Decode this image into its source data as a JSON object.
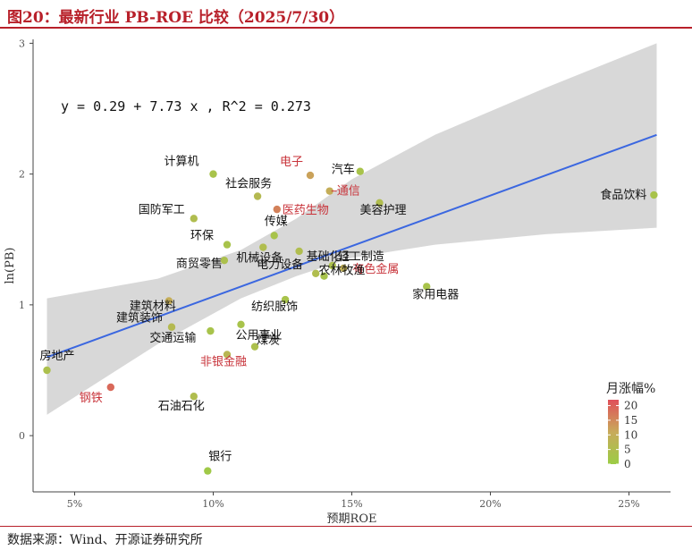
{
  "header": {
    "title": "图20：最新行业 PB-ROE 比较（2025/7/30）"
  },
  "footer": {
    "source": "数据来源：Wind、开源证券研究所"
  },
  "chart_data": {
    "type": "scatter",
    "title": "",
    "xlabel": "预期ROE",
    "ylabel": "ln(PB)",
    "xlim": [
      0.035,
      0.265
    ],
    "ylim": [
      -0.43,
      3.03
    ],
    "x_ticks": [
      {
        "value": 0.05,
        "label": "5%"
      },
      {
        "value": 0.1,
        "label": "10%"
      },
      {
        "value": 0.15,
        "label": "15%"
      },
      {
        "value": 0.2,
        "label": "20%"
      },
      {
        "value": 0.25,
        "label": "25%"
      }
    ],
    "y_ticks": [
      {
        "value": 0,
        "label": "0"
      },
      {
        "value": 1,
        "label": "1"
      },
      {
        "value": 2,
        "label": "2"
      },
      {
        "value": 3,
        "label": "3"
      }
    ],
    "grid": false,
    "regression": {
      "equation": "y = 0.29 + 7.73 x , R^2 = 0.273",
      "x_range": [
        0.04,
        0.26
      ],
      "intercept": 0.29,
      "slope": 7.73,
      "line_color": "#3b67e0",
      "band_color": "#d6d6d6",
      "band": [
        {
          "x": 0.04,
          "lo": 0.16,
          "hi": 1.05
        },
        {
          "x": 0.08,
          "lo": 0.7,
          "hi": 1.2
        },
        {
          "x": 0.11,
          "lo": 1.05,
          "hi": 1.42
        },
        {
          "x": 0.13,
          "lo": 1.22,
          "hi": 1.66
        },
        {
          "x": 0.15,
          "lo": 1.36,
          "hi": 1.96
        },
        {
          "x": 0.18,
          "lo": 1.46,
          "hi": 2.3
        },
        {
          "x": 0.22,
          "lo": 1.54,
          "hi": 2.66
        },
        {
          "x": 0.26,
          "lo": 1.59,
          "hi": 3.0
        }
      ]
    },
    "legend": {
      "title": "月涨幅%",
      "position": "right",
      "ticks": [
        "20",
        "15",
        "10",
        "5",
        "0"
      ],
      "tick_values": [
        20,
        15,
        10,
        5,
        0
      ],
      "range": [
        0,
        22
      ],
      "color_low": "#9ccc46",
      "color_high": "#e0505a"
    },
    "points": [
      {
        "label": "计算机",
        "x": 0.1,
        "y": 2.0,
        "change": 3,
        "highlight": false
      },
      {
        "label": "电子",
        "x": 0.135,
        "y": 1.99,
        "change": 12,
        "highlight": true
      },
      {
        "label": "汽车",
        "x": 0.153,
        "y": 2.02,
        "change": 3,
        "highlight": false
      },
      {
        "label": "通信",
        "x": 0.142,
        "y": 1.87,
        "change": 10,
        "highlight": true
      },
      {
        "label": "社会服务",
        "x": 0.116,
        "y": 1.83,
        "change": 6,
        "highlight": false
      },
      {
        "label": "医药生物",
        "x": 0.123,
        "y": 1.73,
        "change": 16,
        "highlight": true
      },
      {
        "label": "美容护理",
        "x": 0.16,
        "y": 1.78,
        "change": 5,
        "highlight": false
      },
      {
        "label": "国防军工",
        "x": 0.093,
        "y": 1.66,
        "change": 5,
        "highlight": false
      },
      {
        "label": "食品饮料",
        "x": 0.259,
        "y": 1.84,
        "change": 3,
        "highlight": false
      },
      {
        "label": "传媒",
        "x": 0.122,
        "y": 1.53,
        "change": 3,
        "highlight": false
      },
      {
        "label": "环保",
        "x": 0.105,
        "y": 1.46,
        "change": 3,
        "highlight": false
      },
      {
        "label": "轻工制造",
        "x": 0.143,
        "y": 1.3,
        "change": 4,
        "highlight": false
      },
      {
        "label": "机械设备",
        "x": 0.118,
        "y": 1.44,
        "change": 5,
        "highlight": false
      },
      {
        "label": "基础化工",
        "x": 0.131,
        "y": 1.41,
        "change": 5,
        "highlight": false
      },
      {
        "label": "商贸零售",
        "x": 0.104,
        "y": 1.34,
        "change": 4,
        "highlight": false
      },
      {
        "label": "电力设备",
        "x": 0.137,
        "y": 1.24,
        "change": 5,
        "highlight": false
      },
      {
        "label": "有色金属",
        "x": 0.147,
        "y": 1.28,
        "change": 9,
        "highlight": true
      },
      {
        "label": "农林牧渔",
        "x": 0.14,
        "y": 1.22,
        "change": 3,
        "highlight": false
      },
      {
        "label": "家用电器",
        "x": 0.177,
        "y": 1.14,
        "change": 3,
        "highlight": false
      },
      {
        "label": "建筑材料",
        "x": 0.084,
        "y": 1.03,
        "change": 10,
        "highlight": false
      },
      {
        "label": "纺织服饰",
        "x": 0.126,
        "y": 1.04,
        "change": 3,
        "highlight": false
      },
      {
        "label": "建筑装饰",
        "x": 0.085,
        "y": 0.83,
        "change": 6,
        "highlight": false
      },
      {
        "label": "公用事业",
        "x": 0.11,
        "y": 0.85,
        "change": 3,
        "highlight": false
      },
      {
        "label": "交通运输",
        "x": 0.099,
        "y": 0.8,
        "change": 3,
        "highlight": false
      },
      {
        "label": "煤炭",
        "x": 0.115,
        "y": 0.68,
        "change": 4,
        "highlight": false
      },
      {
        "label": "非银金融",
        "x": 0.105,
        "y": 0.62,
        "change": 7,
        "highlight": true
      },
      {
        "label": "房地产",
        "x": 0.04,
        "y": 0.5,
        "change": 4,
        "highlight": false
      },
      {
        "label": "钢铁",
        "x": 0.063,
        "y": 0.37,
        "change": 19,
        "highlight": true
      },
      {
        "label": "石油石化",
        "x": 0.093,
        "y": 0.3,
        "change": 5,
        "highlight": false
      },
      {
        "label": "银行",
        "x": 0.098,
        "y": -0.27,
        "change": 1,
        "highlight": false
      }
    ]
  }
}
